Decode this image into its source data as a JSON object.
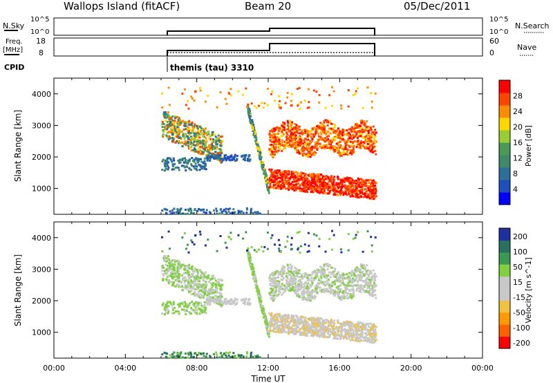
{
  "header": {
    "station": "Wallops Island (fitACF)",
    "beam": "Beam 20",
    "date": "05/Dec/2011"
  },
  "status_panels": {
    "nsky_label": "N.Sky",
    "nsky_ticks": [
      "10^5",
      "10^0"
    ],
    "nsearch_label": "N.Search",
    "nsearch_ticks": [
      "10^5",
      "10^0"
    ],
    "freq_label_1": "Freq.",
    "freq_label_2": "[MHz]",
    "freq_ticks": [
      "18",
      "8"
    ],
    "nave_label": "Nave",
    "nave_ticks": [
      "60",
      "0"
    ],
    "cpid_label": "CPID",
    "cpid_text": "themis (tau) 3310"
  },
  "colors": {
    "power_scale": [
      "#0000ff",
      "#1f4fbf",
      "#2e6f9a",
      "#3f8a6a",
      "#4a9a55",
      "#9acd32",
      "#ffd700",
      "#ff8c00",
      "#ff4500",
      "#ff0000"
    ],
    "velocity_scale": [
      "#ff0000",
      "#ff6000",
      "#ff9a00",
      "#f0c040",
      "#c8c8c8",
      "#c8c8c8",
      "#80d040",
      "#3a9a50",
      "#2a7060",
      "#2030a0"
    ]
  },
  "chart_data": [
    {
      "type": "heatmap",
      "title": "Power",
      "ylabel": "Slant Range [km]",
      "xlabel": "",
      "y_ticks": [
        "1000",
        "2000",
        "3000",
        "4000"
      ],
      "ylim": [
        180,
        4500
      ],
      "colorbar": {
        "label": "Power [dB]",
        "ticks": [
          "4",
          "8",
          "12",
          "16",
          "20",
          "24",
          "28"
        ],
        "range": [
          0,
          32
        ]
      },
      "data_extent_hours": [
        6.0,
        18.0
      ]
    },
    {
      "type": "heatmap",
      "title": "Velocity",
      "ylabel": "Slant Range [km]",
      "xlabel": "Time UT",
      "y_ticks": [
        "1000",
        "2000",
        "3000",
        "4000"
      ],
      "ylim": [
        180,
        4500
      ],
      "x_ticks": [
        "00:00",
        "04:00",
        "08:00",
        "12:00",
        "16:00",
        "20:00",
        "00:00"
      ],
      "xlim_hours": [
        0,
        24
      ],
      "colorbar": {
        "label": "Velocity [m s^-1]",
        "ticks": [
          "200",
          "100",
          "50",
          "15",
          "-15",
          "-50",
          "-100",
          "-200"
        ]
      },
      "data_extent_hours": [
        6.0,
        18.0
      ]
    }
  ]
}
